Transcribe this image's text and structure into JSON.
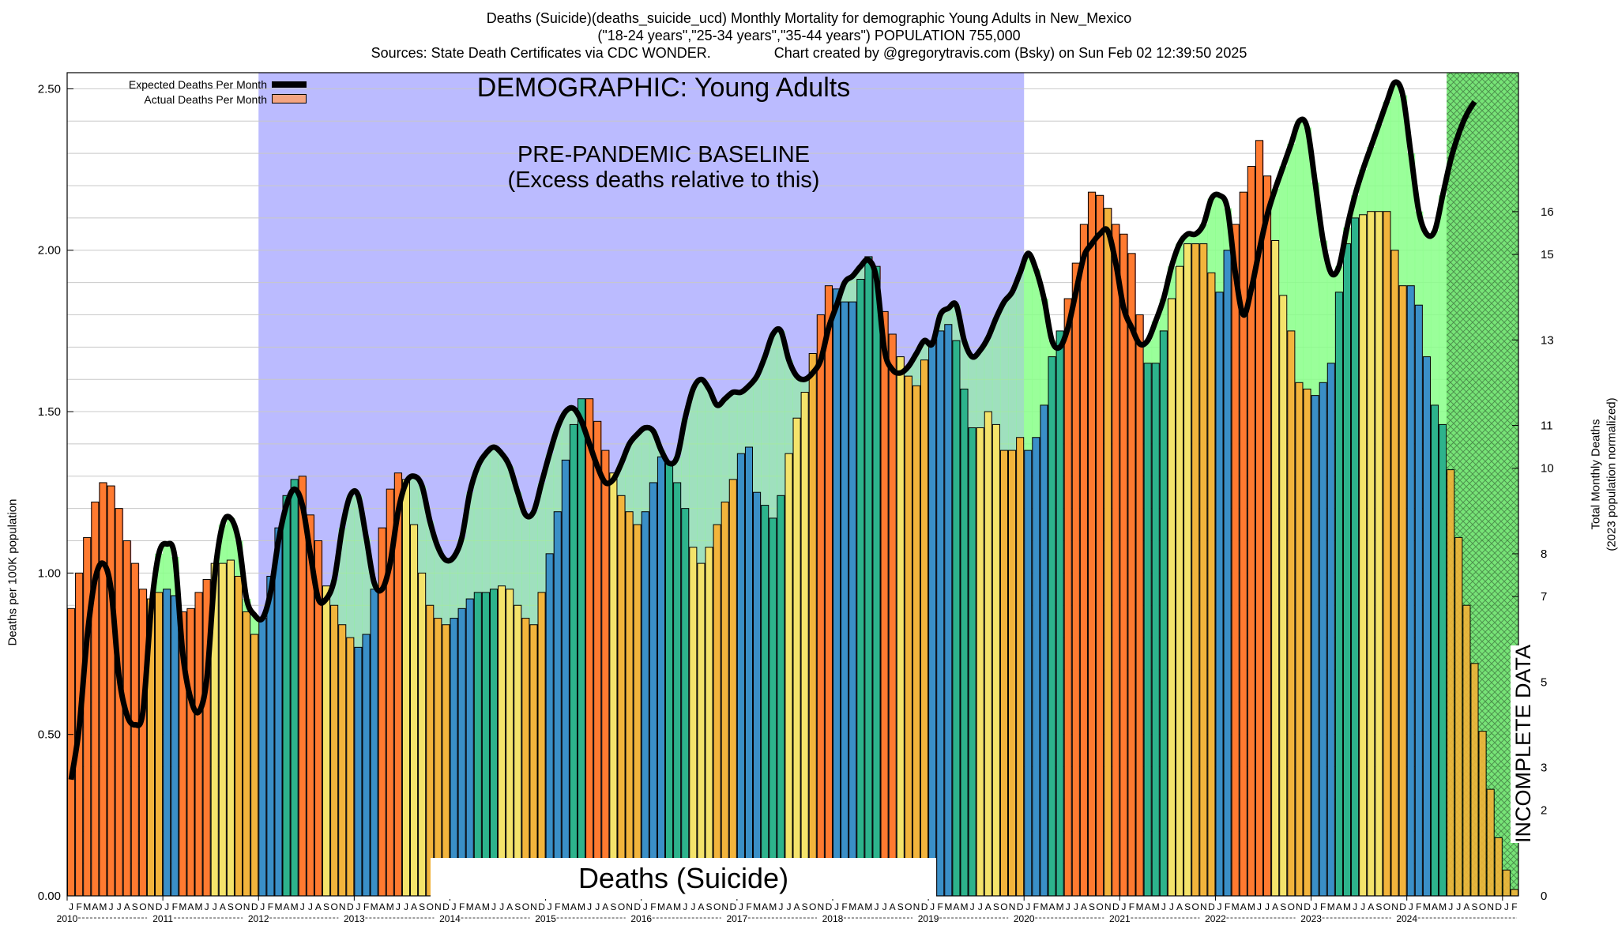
{
  "header": {
    "title_line1": "Deaths (Suicide)(deaths_suicide_ucd) Monthly Mortality for demographic Young Adults in New_Mexico",
    "title_line2": "(\"18-24 years\",\"25-34 years\",\"35-44 years\") POPULATION 755,000",
    "title_line3": "Sources: State Death Certificates via CDC WONDER.                Chart created by @gregorytravis.com (Bsky) on Sun Feb 02 12:39:50 2025"
  },
  "overlay": {
    "demographic": "DEMOGRAPHIC: Young Adults",
    "baseline_line1": "PRE-PANDEMIC BASELINE",
    "baseline_line2": "(Excess deaths relative to this)",
    "cause": "Deaths (Suicide)",
    "incomplete": "INCOMPLETE DATA"
  },
  "legend": {
    "expected": "Expected Deaths Per Month",
    "actual": "Actual Deaths Per Month"
  },
  "colors": {
    "baseline_region": "#bbbbff",
    "winter": "#3a8fc7",
    "spring": "#2db38c",
    "summer": "#f4e36b",
    "fall": "#f2b43c",
    "excess": "#ff7a30",
    "deficit": "#88ff88",
    "expected_line": "#000000"
  },
  "chart_data": {
    "type": "bar",
    "title": "Deaths (Suicide)(deaths_suicide_ucd) Monthly Mortality for demographic Young Adults in New_Mexico",
    "ylabel": "Deaths per 100K population",
    "y2label": "Total Monthly Deaths",
    "y2label_sub": "(2023 population normalized)",
    "ylim": [
      0,
      2.55
    ],
    "y2lim": [
      0,
      19.25
    ],
    "yticks": [
      "0.00",
      "0.50",
      "1.00",
      "1.50",
      "2.00",
      "2.50"
    ],
    "y2ticks": [
      "0",
      "2",
      "3",
      "5",
      "7",
      "8",
      "10",
      "11",
      "13",
      "15",
      "16"
    ],
    "x_start": "2010-01",
    "month_letters": [
      "J",
      "F",
      "M",
      "A",
      "M",
      "J",
      "J",
      "A",
      "S",
      "O",
      "N",
      "D"
    ],
    "years": [
      "2010",
      "2011",
      "2012",
      "2013",
      "2014",
      "2015",
      "2016",
      "2017",
      "2018",
      "2019",
      "2020",
      "2021",
      "2022",
      "2023",
      "2024"
    ],
    "baseline_period": [
      "2012-01",
      "2019-12"
    ],
    "incomplete_from": "2024-06",
    "series": [
      {
        "name": "Actual Deaths Per Month",
        "values": [
          0.89,
          1.0,
          1.11,
          1.22,
          1.28,
          1.27,
          1.2,
          1.1,
          1.03,
          0.95,
          0.92,
          0.94,
          0.95,
          0.93,
          0.88,
          0.89,
          0.94,
          0.98,
          1.03,
          1.03,
          1.04,
          0.99,
          0.88,
          0.81,
          0.86,
          0.99,
          1.14,
          1.24,
          1.29,
          1.3,
          1.18,
          1.1,
          0.96,
          0.9,
          0.84,
          0.8,
          0.77,
          0.81,
          0.95,
          1.14,
          1.26,
          1.31,
          1.29,
          1.15,
          1.0,
          0.9,
          0.86,
          0.84,
          0.86,
          0.89,
          0.92,
          0.94,
          0.94,
          0.95,
          0.96,
          0.95,
          0.9,
          0.86,
          0.84,
          0.94,
          1.06,
          1.19,
          1.35,
          1.46,
          1.54,
          1.54,
          1.47,
          1.38,
          1.31,
          1.24,
          1.19,
          1.15,
          1.19,
          1.28,
          1.36,
          1.34,
          1.28,
          1.2,
          1.08,
          1.03,
          1.08,
          1.15,
          1.22,
          1.29,
          1.37,
          1.39,
          1.25,
          1.21,
          1.17,
          1.24,
          1.37,
          1.48,
          1.56,
          1.68,
          1.8,
          1.89,
          1.88,
          1.84,
          1.84,
          1.91,
          1.98,
          1.95,
          1.81,
          1.74,
          1.67,
          1.61,
          1.58,
          1.66,
          1.72,
          1.75,
          1.77,
          1.72,
          1.57,
          1.45,
          1.45,
          1.5,
          1.46,
          1.38,
          1.38,
          1.42,
          1.38,
          1.42,
          1.52,
          1.67,
          1.75,
          1.85,
          1.96,
          2.08,
          2.18,
          2.17,
          2.13,
          2.08,
          2.05,
          1.99,
          1.8,
          1.65,
          1.65,
          1.75,
          1.85,
          1.95,
          2.02,
          2.02,
          2.02,
          1.93,
          1.87,
          2.0,
          2.08,
          2.18,
          2.26,
          2.34,
          2.23,
          2.03,
          1.86,
          1.75,
          1.59,
          1.57,
          1.55,
          1.59,
          1.65,
          1.87,
          2.02,
          2.1,
          2.11,
          2.12,
          2.12,
          2.12,
          2.0,
          1.89,
          1.89,
          1.83,
          1.67,
          1.52,
          1.46,
          1.32,
          1.11,
          0.9,
          0.72,
          0.51,
          0.33,
          0.18,
          0.08,
          0.02
        ]
      },
      {
        "name": "Expected Deaths Per Month",
        "values": [
          0.36,
          0.52,
          0.8,
          0.98,
          1.03,
          0.95,
          0.68,
          0.56,
          0.53,
          0.57,
          0.88,
          1.06,
          1.09,
          1.05,
          0.75,
          0.61,
          0.57,
          0.67,
          0.99,
          1.15,
          1.17,
          1.1,
          0.92,
          0.87,
          0.86,
          0.94,
          1.1,
          1.21,
          1.26,
          1.21,
          1.06,
          0.92,
          0.92,
          0.98,
          1.14,
          1.24,
          1.24,
          1.11,
          0.97,
          0.95,
          1.03,
          1.19,
          1.28,
          1.3,
          1.27,
          1.16,
          1.08,
          1.04,
          1.05,
          1.11,
          1.25,
          1.33,
          1.37,
          1.39,
          1.37,
          1.33,
          1.25,
          1.18,
          1.19,
          1.28,
          1.37,
          1.45,
          1.5,
          1.51,
          1.47,
          1.4,
          1.33,
          1.28,
          1.29,
          1.34,
          1.4,
          1.43,
          1.45,
          1.44,
          1.38,
          1.34,
          1.36,
          1.48,
          1.57,
          1.6,
          1.57,
          1.52,
          1.54,
          1.56,
          1.56,
          1.58,
          1.61,
          1.67,
          1.74,
          1.75,
          1.66,
          1.61,
          1.6,
          1.62,
          1.66,
          1.76,
          1.83,
          1.9,
          1.92,
          1.95,
          1.97,
          1.91,
          1.69,
          1.63,
          1.62,
          1.64,
          1.68,
          1.72,
          1.71,
          1.8,
          1.82,
          1.83,
          1.72,
          1.67,
          1.69,
          1.73,
          1.79,
          1.84,
          1.87,
          1.93,
          1.99,
          1.94,
          1.85,
          1.72,
          1.7,
          1.76,
          1.87,
          1.98,
          2.02,
          2.05,
          2.06,
          1.96,
          1.82,
          1.76,
          1.71,
          1.72,
          1.78,
          1.85,
          1.95,
          2.02,
          2.05,
          2.05,
          2.08,
          2.16,
          2.17,
          2.13,
          1.93,
          1.8,
          1.88,
          2.0,
          2.11,
          2.19,
          2.26,
          2.33,
          2.4,
          2.38,
          2.21,
          2.03,
          1.93,
          1.95,
          2.07,
          2.17,
          2.25,
          2.32,
          2.39,
          2.46,
          2.52,
          2.48,
          2.3,
          2.12,
          2.05,
          2.06,
          2.17,
          2.28,
          2.36,
          2.42,
          2.46
        ]
      }
    ]
  }
}
